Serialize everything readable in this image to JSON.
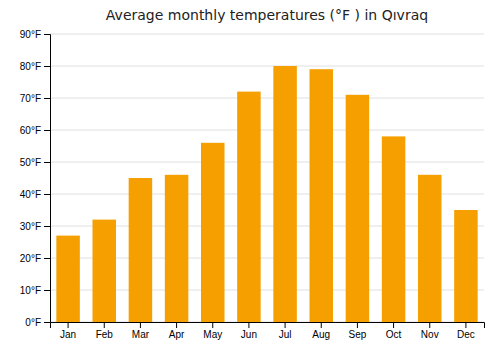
{
  "chart_data": {
    "type": "bar",
    "title": "Average monthly temperatures (°F ) in Qıvraq",
    "categories": [
      "Jan",
      "Feb",
      "Mar",
      "Apr",
      "May",
      "Jun",
      "Jul",
      "Aug",
      "Sep",
      "Oct",
      "Nov",
      "Dec"
    ],
    "values": [
      27,
      32,
      45,
      46,
      56,
      72,
      80,
      79,
      71,
      58,
      46,
      35
    ],
    "color": "#F5A000",
    "ylim": [
      0,
      90
    ],
    "yticks": [
      {
        "value": 0,
        "label": "0°F"
      },
      {
        "value": 10,
        "label": "10°F"
      },
      {
        "value": 20,
        "label": "20°F"
      },
      {
        "value": 30,
        "label": "30°F"
      },
      {
        "value": 40,
        "label": "40°F"
      },
      {
        "value": 50,
        "label": "50°F"
      },
      {
        "value": 60,
        "label": "60°F"
      },
      {
        "value": 70,
        "label": "70°F"
      },
      {
        "value": 80,
        "label": "80°F"
      },
      {
        "value": 90,
        "label": "90°F"
      }
    ],
    "grid": true
  }
}
